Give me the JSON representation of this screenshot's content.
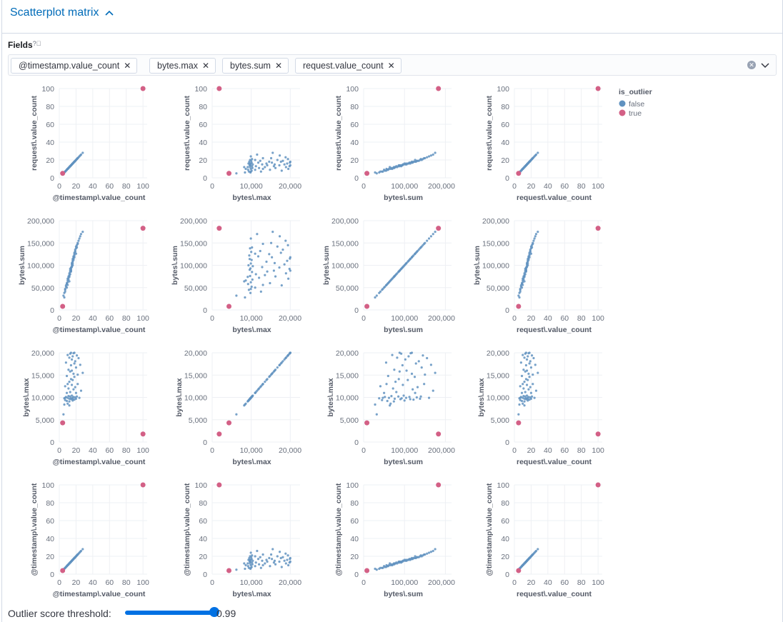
{
  "header": {
    "title": "Scatterplot matrix",
    "collapse_icon": "chevron-up-icon"
  },
  "fields": {
    "label": "Fields",
    "help_icon": "question-circle-icon",
    "selected": [
      "@timestamp.value_count",
      "bytes.max",
      "bytes.sum",
      "request.value_count"
    ],
    "remove_icon": "cross-icon",
    "clear_icon": "clear-circle-icon",
    "dropdown_icon": "chevron-down-icon"
  },
  "threshold": {
    "label": "Outlier score threshold:",
    "value": 0.99,
    "value_label": "0.99",
    "min": 0,
    "max": 1
  },
  "chart_data": {
    "type": "scatter-matrix",
    "colors": {
      "false": "#6092c0",
      "true": "#d36086"
    },
    "legend": {
      "title": "is_outlier",
      "entries": [
        "false",
        "true"
      ],
      "placement": "right"
    },
    "grid": true,
    "axes": {
      "t": {
        "label": "@timestamp\\.value_count",
        "range": [
          0,
          105
        ],
        "ticks": [
          0,
          20,
          40,
          60,
          80,
          100
        ],
        "tick_labels": [
          "0",
          "20",
          "40",
          "60",
          "80",
          "100"
        ]
      },
      "m": {
        "label": "bytes\\.max",
        "range": [
          0,
          22500
        ],
        "yrange": [
          0,
          20000
        ],
        "ticks": [
          0,
          10000,
          20000
        ],
        "tick_labels": [
          "0",
          "10,000",
          "20,000"
        ],
        "yticks": [
          0,
          5000,
          10000,
          15000,
          20000
        ],
        "ytick_labels": [
          "0",
          "5,000",
          "10,000",
          "15,000",
          "20,000"
        ]
      },
      "s": {
        "label": "bytes\\.sum",
        "range": [
          0,
          215000
        ],
        "yrange": [
          0,
          200000
        ],
        "ticks": [
          0,
          100000,
          200000
        ],
        "tick_labels": [
          "0",
          "100,000",
          "200,000"
        ],
        "yticks": [
          0,
          50000,
          100000,
          150000,
          200000
        ],
        "ytick_labels": [
          "0",
          "50,000",
          "100,000",
          "150,000",
          "200,000"
        ]
      },
      "r": {
        "label": "request\\.value_count",
        "range": [
          0,
          105
        ],
        "ticks": [
          0,
          20,
          40,
          60,
          80,
          100
        ],
        "tick_labels": [
          "0",
          "20",
          "40",
          "60",
          "80",
          "100"
        ]
      }
    },
    "rows": [
      "r",
      "s",
      "m",
      "t"
    ],
    "columns": [
      "t",
      "m",
      "s",
      "r"
    ],
    "point_fields": [
      "t",
      "m",
      "s",
      "r",
      "is_outlier"
    ],
    "points": [
      [
        5,
        6200,
        32000,
        5,
        false
      ],
      [
        6,
        9800,
        38000,
        6,
        false
      ],
      [
        7,
        9400,
        45000,
        7,
        false
      ],
      [
        7,
        12500,
        41000,
        7,
        false
      ],
      [
        8,
        10100,
        52000,
        8,
        false
      ],
      [
        8,
        17800,
        55000,
        8,
        false
      ],
      [
        9,
        9200,
        58000,
        9,
        false
      ],
      [
        9,
        14800,
        60000,
        9,
        false
      ],
      [
        10,
        9900,
        62000,
        10,
        false
      ],
      [
        10,
        19500,
        70000,
        10,
        false
      ],
      [
        10,
        8600,
        66000,
        10,
        false
      ],
      [
        11,
        10300,
        68000,
        11,
        false
      ],
      [
        11,
        16200,
        75000,
        11,
        false
      ],
      [
        11,
        12000,
        72000,
        11,
        false
      ],
      [
        12,
        9700,
        76000,
        12,
        false
      ],
      [
        12,
        18900,
        82000,
        12,
        false
      ],
      [
        12,
        13500,
        78000,
        12,
        false
      ],
      [
        12,
        9100,
        74000,
        12,
        false
      ],
      [
        13,
        10200,
        85000,
        13,
        false
      ],
      [
        13,
        15800,
        88000,
        13,
        false
      ],
      [
        13,
        19800,
        92000,
        13,
        false
      ],
      [
        13,
        11200,
        80000,
        13,
        false
      ],
      [
        14,
        9600,
        90000,
        14,
        false
      ],
      [
        14,
        17200,
        95000,
        14,
        false
      ],
      [
        14,
        14100,
        86000,
        14,
        false
      ],
      [
        14,
        9800,
        93000,
        14,
        false
      ],
      [
        15,
        10400,
        98000,
        15,
        false
      ],
      [
        15,
        18500,
        102000,
        15,
        false
      ],
      [
        15,
        12800,
        96000,
        15,
        false
      ],
      [
        15,
        16000,
        105000,
        15,
        false
      ],
      [
        16,
        9300,
        100000,
        16,
        false
      ],
      [
        16,
        19200,
        110000,
        16,
        false
      ],
      [
        16,
        13900,
        108000,
        16,
        false
      ],
      [
        16,
        9900,
        104000,
        16,
        false
      ],
      [
        17,
        10100,
        112000,
        17,
        false
      ],
      [
        17,
        15300,
        118000,
        17,
        false
      ],
      [
        17,
        19900,
        115000,
        17,
        false
      ],
      [
        17,
        11800,
        120000,
        17,
        false
      ],
      [
        18,
        9500,
        122000,
        18,
        false
      ],
      [
        18,
        17600,
        128000,
        18,
        false
      ],
      [
        18,
        14600,
        125000,
        18,
        false
      ],
      [
        19,
        10000,
        130000,
        19,
        false
      ],
      [
        19,
        18100,
        135000,
        19,
        false
      ],
      [
        19,
        12300,
        132000,
        19,
        false
      ],
      [
        20,
        9700,
        138000,
        20,
        false
      ],
      [
        20,
        16700,
        142000,
        20,
        false
      ],
      [
        21,
        19400,
        145000,
        21,
        false
      ],
      [
        21,
        10200,
        140000,
        21,
        false
      ],
      [
        22,
        15100,
        150000,
        22,
        false
      ],
      [
        22,
        13000,
        148000,
        22,
        false
      ],
      [
        23,
        18800,
        155000,
        23,
        false
      ],
      [
        24,
        9900,
        160000,
        24,
        false
      ],
      [
        25,
        17300,
        165000,
        25,
        false
      ],
      [
        26,
        11500,
        170000,
        26,
        false
      ],
      [
        28,
        15500,
        175000,
        28,
        false
      ],
      [
        6,
        8400,
        28000,
        6,
        false
      ],
      [
        9,
        11000,
        50000,
        9,
        false
      ],
      [
        14,
        20000,
        88000,
        14,
        false
      ],
      [
        16,
        9600,
        114000,
        16,
        false
      ],
      [
        12,
        8200,
        64000,
        12,
        false
      ],
      [
        18,
        20000,
        118000,
        18,
        false
      ],
      [
        10,
        13000,
        56000,
        10,
        false
      ],
      [
        20,
        11000,
        126000,
        20,
        false
      ],
      [
        7,
        9900,
        47000,
        7,
        false
      ],
      [
        100,
        1800,
        183000,
        100,
        true
      ],
      [
        4,
        4300,
        8000,
        5,
        true
      ]
    ]
  }
}
